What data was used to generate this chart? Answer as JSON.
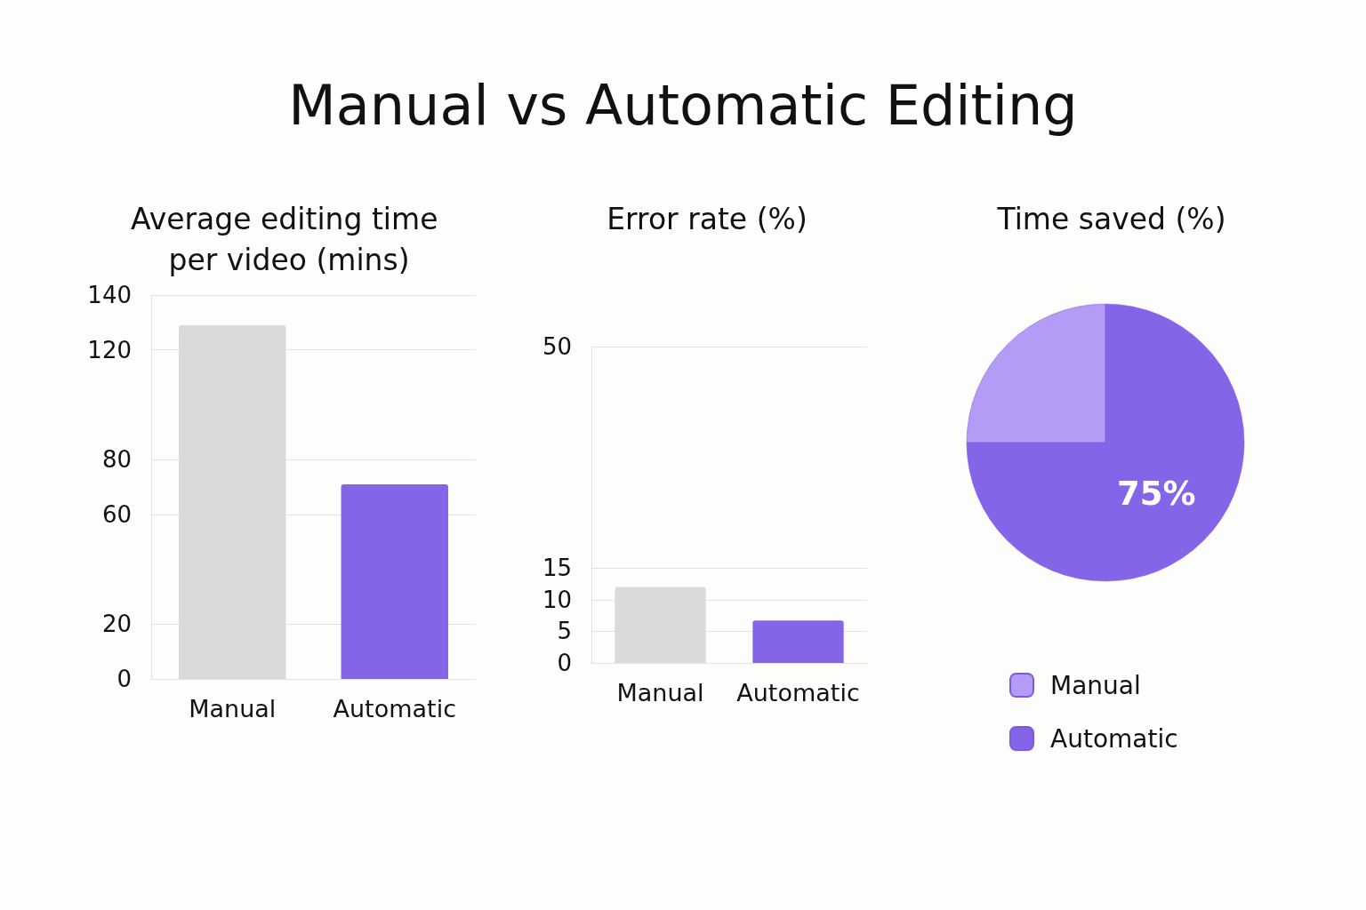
{
  "chart_data": [
    {
      "type": "bar",
      "title": "Manual vs Automatic Editing",
      "subtitle": "Average editing time per video (mins)",
      "categories": [
        "Manual",
        "Automatic"
      ],
      "values": [
        129,
        71
      ],
      "colors": [
        "#dadada",
        "#8465e8"
      ],
      "ylim": [
        0,
        140
      ],
      "yticks": [
        0,
        20,
        60,
        80,
        120,
        140
      ],
      "grid": "y"
    },
    {
      "type": "bar",
      "subtitle": "Error rate (%)",
      "categories": [
        "Manual",
        "Automatic"
      ],
      "values": [
        12,
        6.7
      ],
      "colors": [
        "#dadada",
        "#8465e8"
      ],
      "ylim": [
        0,
        50
      ],
      "yticks": [
        0,
        5,
        10,
        15,
        50
      ],
      "grid": "y"
    },
    {
      "type": "pie",
      "subtitle": "Time saved (%)",
      "categories": [
        "Manual",
        "Automatic"
      ],
      "values": [
        25,
        75
      ],
      "colors": [
        "#b49bf5",
        "#8465e8"
      ],
      "value_labels": [
        null,
        "75%"
      ],
      "legend": "bottom"
    }
  ]
}
